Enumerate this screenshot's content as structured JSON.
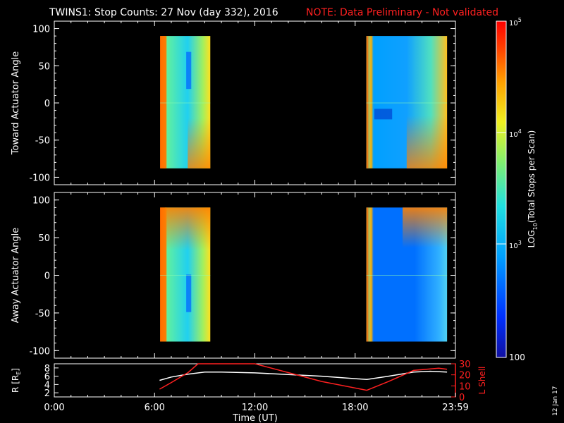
{
  "title": {
    "main": "TWINS1: Stop Counts: 27 Nov (day 332), 2016",
    "note": "NOTE: Data Preliminary - Not validated",
    "note_color": "#ff2020"
  },
  "date_stamp": "12 Jan 17",
  "chart_data": [
    {
      "type": "heatmap",
      "panel": "toward",
      "ylabel": "Toward Actuator Angle",
      "ylim": [
        -110,
        110
      ],
      "yticks": [
        -100,
        -50,
        0,
        50,
        100
      ],
      "xlim_hours": [
        0,
        24
      ],
      "data_blocks": [
        {
          "start": "06:20",
          "end": "09:20",
          "angle_range": [
            -88,
            90
          ]
        },
        {
          "start": "18:40",
          "end": "23:30",
          "angle_range": [
            -88,
            90
          ]
        }
      ]
    },
    {
      "type": "heatmap",
      "panel": "away",
      "ylabel": "Away Actuator Angle",
      "ylim": [
        -110,
        110
      ],
      "yticks": [
        -100,
        -50,
        0,
        50,
        100
      ],
      "xlim_hours": [
        0,
        24
      ],
      "data_blocks": [
        {
          "start": "06:20",
          "end": "09:20",
          "angle_range": [
            -88,
            90
          ]
        },
        {
          "start": "18:40",
          "end": "23:30",
          "angle_range": [
            -88,
            90
          ]
        }
      ]
    },
    {
      "type": "line",
      "panel": "orbit",
      "ylabel": "R [R",
      "ylabel_sub": "E",
      "ylabel_close": "]",
      "ylim": [
        1,
        9
      ],
      "yticks": [
        2,
        4,
        6,
        8
      ],
      "y2label": "L Shell",
      "y2lim": [
        0,
        30
      ],
      "y2ticks": [
        0,
        10,
        20,
        30
      ],
      "y2_color": "#ff2020",
      "xticks": [
        "0:00",
        "6:00",
        "12:00",
        "18:00",
        "23:59"
      ],
      "xlabel": "Time (UT)",
      "series": [
        {
          "color": "#ffffff",
          "x": [
            6.3,
            7.0,
            8.0,
            9.0,
            10.0,
            12.0,
            14.0,
            16.0,
            18.7,
            20.0,
            21.5,
            22.5,
            23.5
          ],
          "y": [
            5.0,
            5.8,
            6.5,
            7.0,
            7.0,
            6.8,
            6.4,
            6.0,
            5.2,
            6.0,
            7.0,
            7.2,
            7.0
          ]
        },
        {
          "color": "#ff2020",
          "x": [
            6.3,
            7.0,
            8.0,
            8.6,
            12.0,
            14.0,
            16.0,
            18.7,
            20.0,
            21.5,
            23.0,
            23.5
          ],
          "y": [
            7,
            13,
            22,
            30,
            30,
            22,
            14,
            6,
            14,
            24,
            26,
            25
          ]
        }
      ]
    }
  ],
  "colorbar": {
    "label_log": "LOG",
    "label_sub": "10",
    "label_rest": "(Total Stops per Scan)",
    "ticks": [
      {
        "label": "10",
        "exp": "5"
      },
      {
        "label": "10",
        "exp": "4"
      },
      {
        "label": "10",
        "exp": "3"
      },
      {
        "label": "100",
        "exp": ""
      }
    ],
    "colors": [
      "#2020a0",
      "#0050ff",
      "#00b0ff",
      "#30e0d0",
      "#80f080",
      "#ffff30",
      "#ffb000",
      "#ff5000",
      "#ff1010"
    ]
  }
}
